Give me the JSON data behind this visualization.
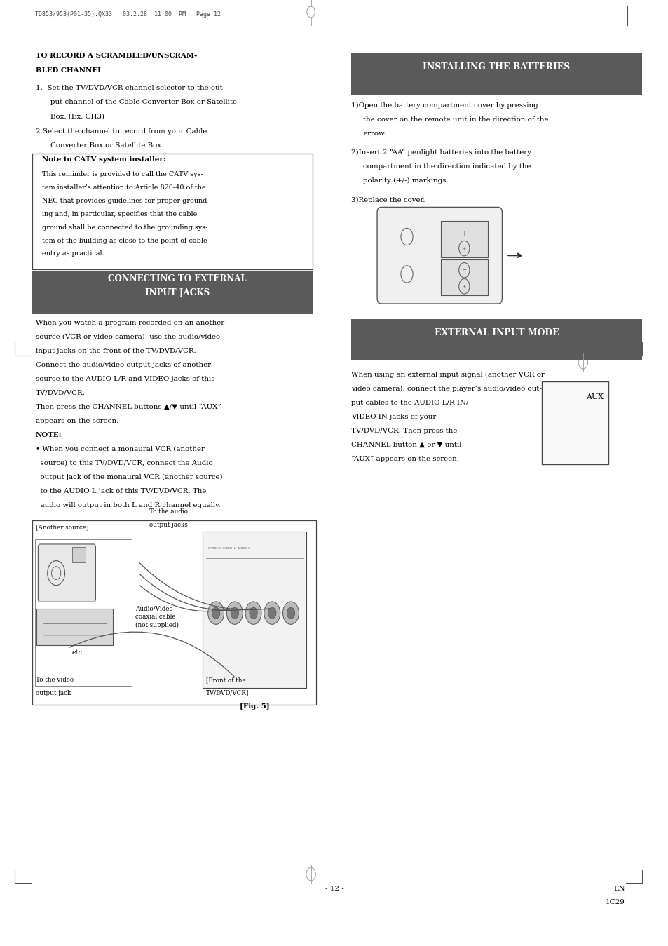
{
  "bg_color": "#ffffff",
  "header_bg": "#5a5a5a",
  "header_text_color": "#ffffff",
  "border_color": "#000000",
  "text_color": "#000000",
  "page_width": 9.54,
  "page_height": 13.49,
  "dpi": 100,
  "header_line": "TD853/953(P01-35).QX33   03.2.28  11:00  PM   Page 12",
  "installing_header": "INSTALLING THE BATTERIES",
  "external_input_header": "EXTERNAL INPUT MODE",
  "connecting_header_line1": "CONNECTING TO EXTERNAL",
  "connecting_header_line2": "INPUT JACKS",
  "page_number": "- 12 -",
  "page_label_line1": "EN",
  "page_label_line2": "1C29"
}
